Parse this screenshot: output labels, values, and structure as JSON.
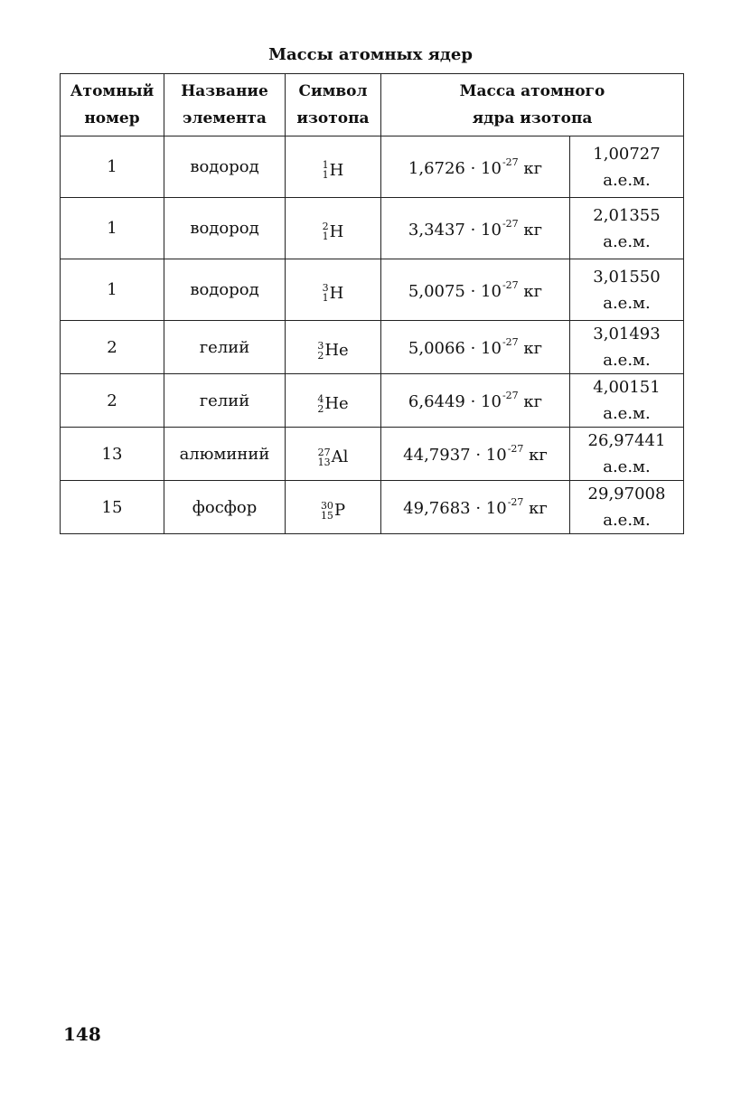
{
  "title": "Массы атомных ядер",
  "headers": {
    "atomic_number": [
      "Атомный",
      "номер"
    ],
    "element_name": [
      "Название",
      "элемента"
    ],
    "isotope_symbol": [
      "Символ",
      "изотопа"
    ],
    "nucleus_mass": [
      "Масса атомного",
      "ядра изотопа"
    ]
  },
  "rows": [
    {
      "z": "1",
      "name": "водород",
      "mass_number": "1",
      "atomic_number": "1",
      "symbol": "H",
      "mass_kg": "1,6726",
      "power": "10",
      "exponent": "-27",
      "unit": "кг",
      "amu": "1,00727",
      "amu_unit": "а.е.м."
    },
    {
      "z": "1",
      "name": "водород",
      "mass_number": "2",
      "atomic_number": "1",
      "symbol": "H",
      "mass_kg": "3,3437",
      "power": "10",
      "exponent": "-27",
      "unit": "кг",
      "amu": "2,01355",
      "amu_unit": "а.е.м."
    },
    {
      "z": "1",
      "name": "водород",
      "mass_number": "3",
      "atomic_number": "1",
      "symbol": "H",
      "mass_kg": "5,0075",
      "power": "10",
      "exponent": "-27",
      "unit": "кг",
      "amu": "3,01550",
      "amu_unit": "а.е.м."
    },
    {
      "z": "2",
      "name": "гелий",
      "mass_number": "3",
      "atomic_number": "2",
      "symbol": "He",
      "mass_kg": "5,0066",
      "power": "10",
      "exponent": "-27",
      "unit": "кг",
      "amu": "3,01493",
      "amu_unit": "а.е.м."
    },
    {
      "z": "2",
      "name": "гелий",
      "mass_number": "4",
      "atomic_number": "2",
      "symbol": "He",
      "mass_kg": "6,6449",
      "power": "10",
      "exponent": "-27",
      "unit": "кг",
      "amu": "4,00151",
      "amu_unit": "а.е.м."
    },
    {
      "z": "13",
      "name": "алюминий",
      "mass_number": "27",
      "atomic_number": "13",
      "symbol": "Al",
      "mass_kg": "44,7937",
      "power": "10",
      "exponent": "-27",
      "unit": "кг",
      "amu": "26,97441",
      "amu_unit": "а.е.м."
    },
    {
      "z": "15",
      "name": "фосфор",
      "mass_number": "30",
      "atomic_number": "15",
      "symbol": "P",
      "mass_kg": "49,7683",
      "power": "10",
      "exponent": "-27",
      "unit": "кг",
      "amu": "29,97008",
      "amu_unit": "а.е.м."
    }
  ],
  "page_number": "148"
}
